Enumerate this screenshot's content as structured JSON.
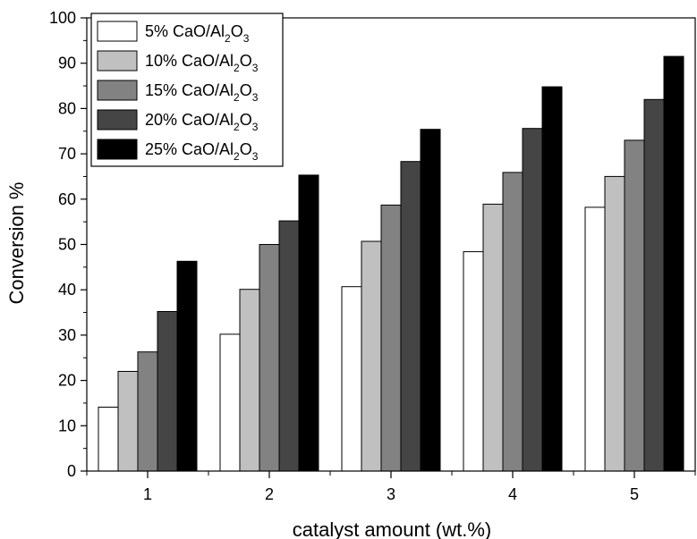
{
  "chart_data": {
    "type": "bar",
    "xlabel": "catalyst amount (wt.%)",
    "ylabel": "Conversion %",
    "categories": [
      "1",
      "2",
      "3",
      "4",
      "5"
    ],
    "ylim": [
      0,
      100
    ],
    "yticks": [
      0,
      10,
      20,
      30,
      40,
      50,
      60,
      70,
      80,
      90,
      100
    ],
    "legend_position": "top-left",
    "series": [
      {
        "name": "5% CaO/Al2O3",
        "label_prefix": "5% CaO/Al",
        "color": "#ffffff",
        "values": [
          14.1,
          30.2,
          40.7,
          48.4,
          58.2
        ]
      },
      {
        "name": "10% CaO/Al2O3",
        "label_prefix": "10% CaO/Al",
        "color": "#c0c0c0",
        "values": [
          22.0,
          40.1,
          50.7,
          58.9,
          65.0
        ]
      },
      {
        "name": "15% CaO/Al2O3",
        "label_prefix": "15% CaO/Al",
        "color": "#828282",
        "values": [
          26.3,
          50.0,
          58.7,
          65.9,
          73.0
        ]
      },
      {
        "name": "20% CaO/Al2O3",
        "label_prefix": "20% CaO/Al",
        "color": "#454545",
        "values": [
          35.2,
          55.2,
          68.3,
          75.6,
          82.0
        ]
      },
      {
        "name": "25% CaO/Al2O3",
        "label_prefix": "25% CaO/Al",
        "color": "#000000",
        "values": [
          46.3,
          65.3,
          75.4,
          84.8,
          91.5
        ]
      }
    ],
    "legend_sub1": "2",
    "legend_mid": "O",
    "legend_sub2": "3"
  }
}
